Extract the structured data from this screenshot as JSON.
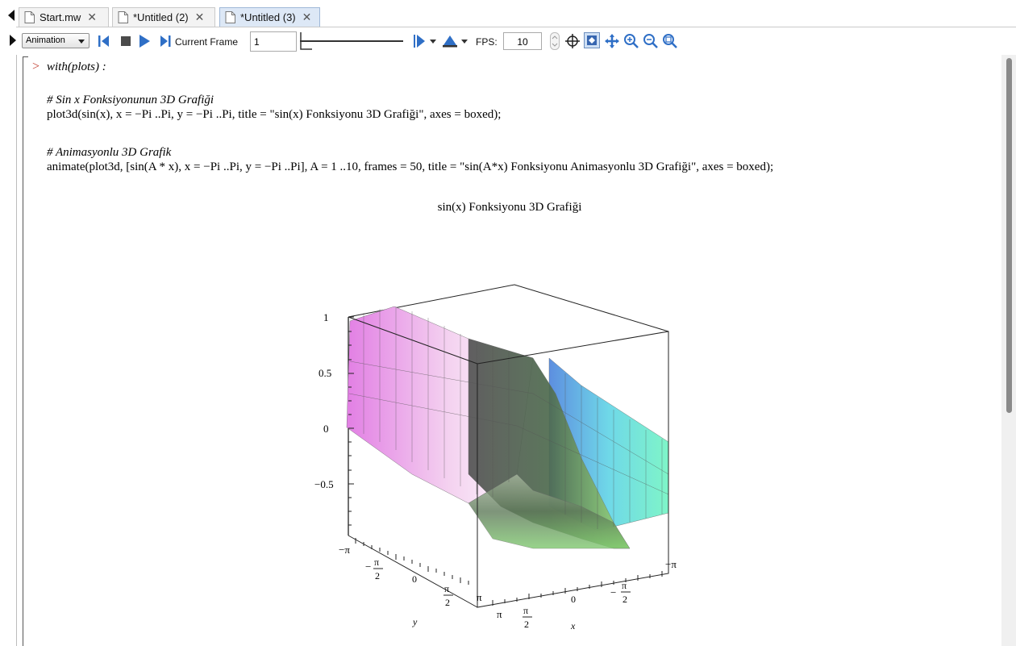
{
  "tabs": [
    {
      "label": "Start.mw",
      "close": "✕"
    },
    {
      "label": "*Untitled (2)",
      "close": "✕"
    },
    {
      "label": "*Untitled (3)",
      "close": "✕"
    }
  ],
  "toolbar": {
    "context_dropdown": "Animation",
    "current_frame_label": "Current Frame",
    "current_frame_value": "1",
    "fps_label": "FPS:",
    "fps_value": "10",
    "frame_slider_position": 0
  },
  "code": {
    "line1": "with(plots) :",
    "comment1": "# Sin x Fonksiyonunun 3D Grafiği",
    "line2": "plot3d(sin(x), x = −Pi ..Pi, y = −Pi ..Pi, title = \"sin(x) Fonksiyonu 3D Grafiği\", axes = boxed);",
    "comment2": "# Animasyonlu 3D Grafik",
    "line3": "animate(plot3d, [sin(A * x), x = −Pi ..Pi, y = −Pi ..Pi], A = 1 ..10, frames = 50, title = \"sin(A*x) Fonksiyonu Animasyonlu 3D Grafiği\", axes = boxed);"
  },
  "plot": {
    "title": "sin(x) Fonksiyonu 3D Grafiği",
    "z_ticks": [
      "1",
      "0.5",
      "0",
      "−0.5"
    ],
    "y_axis_label": "y",
    "x_axis_label": "x",
    "y_ticks": {
      "neg_pi": "−π",
      "neg_half_num": "π",
      "neg_half_den": "2",
      "zero": "0",
      "half_num": "π",
      "half_den": "2",
      "pi": "π"
    },
    "x_ticks": {
      "pi": "π",
      "half_num": "π",
      "half_den": "2",
      "zero": "0",
      "neg_half_num": "π",
      "neg_half_den": "2",
      "neg_pi": "−π"
    }
  },
  "colors": {
    "prompt": "#c0392b",
    "surface_pink": "#e879e8",
    "surface_green": "#8fd98f",
    "surface_cyan": "#6ff0e0",
    "surface_blue": "#6aa0f0"
  }
}
